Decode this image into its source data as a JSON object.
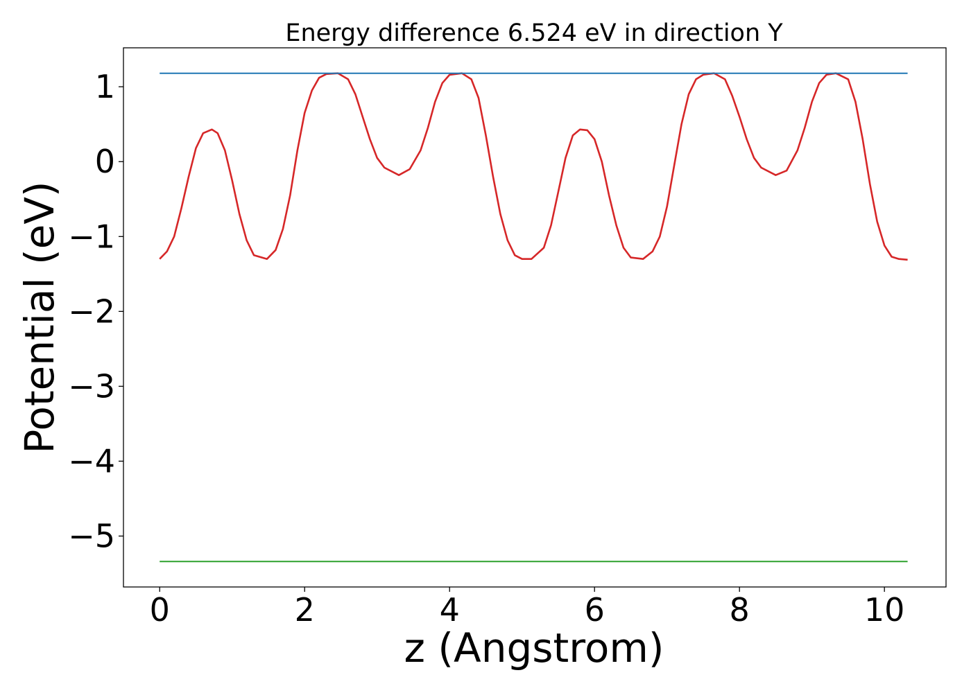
{
  "chart_data": {
    "type": "line",
    "title": "Energy difference 6.524 eV in direction Y",
    "xlabel": "z (Angstrom)",
    "ylabel": "Potential (eV)",
    "xlim": [
      -0.5,
      10.85
    ],
    "ylim": [
      -5.68,
      1.52
    ],
    "xticks": [
      0,
      2,
      4,
      6,
      8,
      10
    ],
    "xtick_labels": [
      "0",
      "2",
      "4",
      "6",
      "8",
      "10"
    ],
    "yticks": [
      -5,
      -4,
      -3,
      -2,
      -1,
      0,
      1
    ],
    "ytick_labels": [
      "−5",
      "−4",
      "−3",
      "−2",
      "−1",
      "0",
      "1"
    ],
    "grid": false,
    "legend": "none",
    "series": [
      {
        "color": "#d62728",
        "x": [
          0.0,
          0.1,
          0.2,
          0.3,
          0.4,
          0.5,
          0.6,
          0.72,
          0.8,
          0.9,
          1.0,
          1.1,
          1.2,
          1.3,
          1.48,
          1.6,
          1.7,
          1.8,
          1.9,
          2.0,
          2.1,
          2.2,
          2.3,
          2.46,
          2.6,
          2.7,
          2.8,
          2.9,
          3.0,
          3.1,
          3.3,
          3.45,
          3.6,
          3.7,
          3.8,
          3.9,
          4.0,
          4.17,
          4.3,
          4.4,
          4.5,
          4.6,
          4.7,
          4.8,
          4.9,
          5.0,
          5.13,
          5.3,
          5.4,
          5.5,
          5.6,
          5.7,
          5.8,
          5.9,
          6.0,
          6.1,
          6.2,
          6.3,
          6.4,
          6.5,
          6.67,
          6.8,
          6.9,
          7.0,
          7.1,
          7.2,
          7.3,
          7.4,
          7.5,
          7.65,
          7.8,
          7.9,
          8.0,
          8.1,
          8.2,
          8.3,
          8.5,
          8.65,
          8.8,
          8.9,
          9.0,
          9.1,
          9.2,
          9.33,
          9.5,
          9.6,
          9.7,
          9.8,
          9.9,
          10.0,
          10.1,
          10.2,
          10.32
        ],
        "y": [
          -1.3,
          -1.2,
          -1.0,
          -0.62,
          -0.2,
          0.18,
          0.38,
          0.43,
          0.38,
          0.15,
          -0.25,
          -0.7,
          -1.05,
          -1.25,
          -1.3,
          -1.18,
          -0.9,
          -0.45,
          0.15,
          0.65,
          0.95,
          1.12,
          1.17,
          1.18,
          1.1,
          0.9,
          0.6,
          0.3,
          0.05,
          -0.08,
          -0.18,
          -0.1,
          0.15,
          0.45,
          0.8,
          1.05,
          1.16,
          1.18,
          1.1,
          0.85,
          0.35,
          -0.2,
          -0.7,
          -1.05,
          -1.25,
          -1.3,
          -1.3,
          -1.15,
          -0.85,
          -0.4,
          0.05,
          0.35,
          0.43,
          0.42,
          0.3,
          0.0,
          -0.45,
          -0.85,
          -1.15,
          -1.28,
          -1.3,
          -1.2,
          -1.0,
          -0.6,
          -0.05,
          0.5,
          0.9,
          1.1,
          1.16,
          1.18,
          1.1,
          0.88,
          0.6,
          0.3,
          0.05,
          -0.08,
          -0.18,
          -0.12,
          0.15,
          0.45,
          0.8,
          1.05,
          1.16,
          1.18,
          1.1,
          0.8,
          0.3,
          -0.3,
          -0.8,
          -1.12,
          -1.27,
          -1.3,
          -1.31
        ]
      },
      {
        "color": "#1f77b4",
        "x": [
          0.0,
          10.32
        ],
        "y": [
          1.18,
          1.18
        ]
      },
      {
        "color": "#2ca02c",
        "x": [
          0.0,
          10.32
        ],
        "y": [
          -5.34,
          -5.34
        ]
      }
    ]
  }
}
